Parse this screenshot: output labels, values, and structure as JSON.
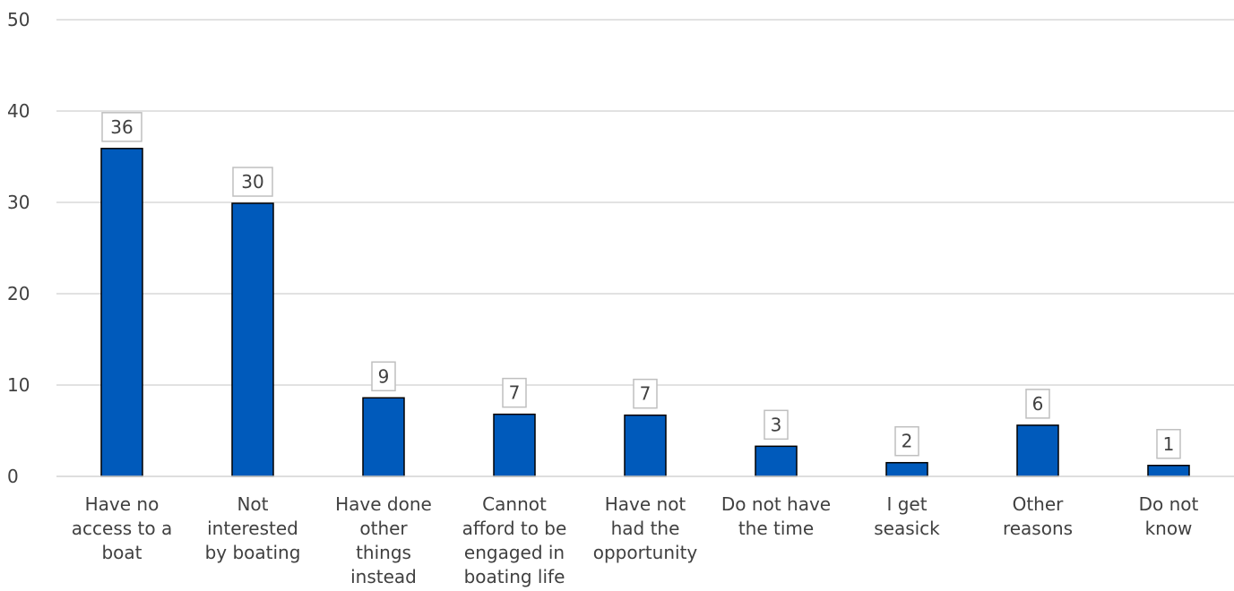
{
  "chart_data": {
    "type": "bar",
    "categories": [
      [
        "Have no",
        "access to a",
        "boat"
      ],
      [
        "Not",
        "interested",
        "by boating"
      ],
      [
        "Have done",
        "other",
        "things",
        "instead"
      ],
      [
        "Cannot",
        "afford to be",
        "engaged in",
        "boating life"
      ],
      [
        "Have not",
        "had the",
        "opportunity"
      ],
      [
        "Do not have",
        "the time"
      ],
      [
        "I get",
        "seasick"
      ],
      [
        "Other",
        "reasons"
      ],
      [
        "Do not",
        "know"
      ]
    ],
    "values": [
      35.9,
      29.9,
      8.6,
      6.8,
      6.7,
      3.3,
      1.5,
      5.6,
      1.2
    ],
    "data_labels": [
      "36",
      "30",
      "9",
      "7",
      "7",
      "3",
      "2",
      "6",
      "1"
    ],
    "ylim": [
      0,
      50
    ],
    "yticks": [
      "0",
      "10",
      "20",
      "30",
      "40",
      "50"
    ],
    "grid": true,
    "colors": {
      "bar": "#005ABB",
      "bar_edge": "#000000",
      "grid": "#D9D9D9",
      "label_box": "#BFBFBF",
      "text": "#404040"
    }
  }
}
